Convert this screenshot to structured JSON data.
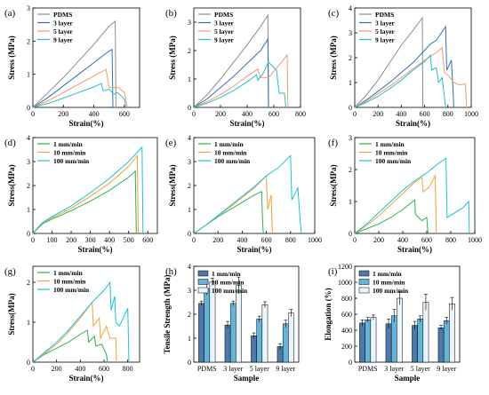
{
  "colors": {
    "PDMS": "#8c8c8c",
    "3 layer": "#2f6fb5",
    "5 layer": "#f39c6b",
    "9 layer": "#20c1c9",
    "1 mm/min": "#2bb34a",
    "10 mm/min": "#f5a03a",
    "100 mm/min": "#18c3d8",
    "bar1": "#4f79a8",
    "bar10": "#62b5d8",
    "bar100": "#eaf5fb"
  },
  "chart_data": [
    {
      "panel": "(a)",
      "type": "line",
      "xlabel": "Strain(%)",
      "ylabel": "Stress (MPa)",
      "xlim": [
        0,
        700
      ],
      "ylim": [
        0,
        3
      ],
      "xticks": [
        0,
        200,
        400,
        600
      ],
      "yticks": [
        0,
        1,
        2,
        3
      ],
      "legend": "top-left",
      "series": [
        {
          "name": "PDMS",
          "x": [
            0,
            100,
            200,
            300,
            400,
            500,
            540,
            545
          ],
          "y": [
            0,
            0.45,
            0.9,
            1.4,
            1.9,
            2.45,
            2.6,
            0
          ]
        },
        {
          "name": "3 layer",
          "x": [
            0,
            100,
            200,
            300,
            400,
            500,
            520,
            525
          ],
          "y": [
            0,
            0.3,
            0.65,
            1.0,
            1.35,
            1.7,
            1.75,
            0
          ]
        },
        {
          "name": "5 layer",
          "x": [
            0,
            100,
            200,
            300,
            400,
            480,
            500,
            560,
            600,
            620
          ],
          "y": [
            0,
            0.2,
            0.45,
            0.7,
            0.95,
            1.15,
            0.6,
            0.6,
            0.45,
            0
          ]
        },
        {
          "name": "9 layer",
          "x": [
            0,
            100,
            200,
            300,
            400,
            450,
            460,
            500,
            530,
            555,
            600,
            610
          ],
          "y": [
            0,
            0.12,
            0.28,
            0.45,
            0.62,
            0.72,
            0.5,
            0.55,
            0.4,
            0.45,
            0.25,
            0
          ]
        }
      ]
    },
    {
      "panel": "(b)",
      "type": "line",
      "xlabel": "Strain(%)",
      "ylabel": "Stress (MPa)",
      "xlim": [
        0,
        800
      ],
      "ylim": [
        0,
        3.5
      ],
      "xticks": [
        0,
        200,
        400,
        600,
        800
      ],
      "yticks": [
        0,
        1,
        2,
        3
      ],
      "legend": "top-left",
      "series": [
        {
          "name": "PDMS",
          "x": [
            0,
            100,
            200,
            300,
            400,
            500,
            555,
            560
          ],
          "y": [
            0,
            0.45,
            1.0,
            1.6,
            2.2,
            2.85,
            3.25,
            0
          ]
        },
        {
          "name": "3 layer",
          "x": [
            0,
            100,
            200,
            300,
            400,
            500,
            555,
            560
          ],
          "y": [
            0,
            0.3,
            0.7,
            1.1,
            1.55,
            2.0,
            2.4,
            0
          ]
        },
        {
          "name": "5 layer",
          "x": [
            0,
            100,
            200,
            300,
            400,
            480,
            500,
            560,
            650,
            700,
            705
          ],
          "y": [
            0,
            0.2,
            0.45,
            0.75,
            1.1,
            1.35,
            1.05,
            1.05,
            1.55,
            1.85,
            0
          ]
        },
        {
          "name": "9 layer",
          "x": [
            0,
            100,
            200,
            300,
            400,
            470,
            480,
            520,
            560,
            620,
            640,
            680,
            690
          ],
          "y": [
            0,
            0.15,
            0.35,
            0.6,
            0.9,
            1.15,
            0.95,
            1.2,
            1.6,
            1.3,
            0.5,
            0.5,
            0
          ]
        }
      ]
    },
    {
      "panel": "(c)",
      "type": "line",
      "xlabel": "Strain(%)",
      "ylabel": "Stress (MPa)",
      "xlim": [
        0,
        1000
      ],
      "ylim": [
        0,
        4
      ],
      "xticks": [
        0,
        200,
        400,
        600,
        800,
        1000
      ],
      "yticks": [
        0,
        1,
        2,
        3,
        4
      ],
      "legend": "top-left",
      "series": [
        {
          "name": "PDMS",
          "x": [
            0,
            100,
            200,
            300,
            400,
            500,
            580,
            585
          ],
          "y": [
            0,
            0.5,
            1.1,
            1.8,
            2.5,
            3.1,
            3.6,
            0
          ]
        },
        {
          "name": "3 layer",
          "x": [
            0,
            100,
            200,
            300,
            400,
            500,
            600,
            650,
            700,
            780,
            790,
            830,
            845,
            850
          ],
          "y": [
            0,
            0.3,
            0.65,
            1.0,
            1.4,
            1.8,
            2.3,
            2.55,
            2.7,
            3.25,
            1.5,
            1.9,
            0.6,
            0
          ]
        },
        {
          "name": "5 layer",
          "x": [
            0,
            100,
            200,
            300,
            400,
            500,
            600,
            700,
            750,
            770,
            800,
            850,
            900,
            950,
            960
          ],
          "y": [
            0,
            0.25,
            0.55,
            0.85,
            1.2,
            1.55,
            1.9,
            2.2,
            2.4,
            1.4,
            1.3,
            1.0,
            0.9,
            0.95,
            0
          ]
        },
        {
          "name": "9 layer",
          "x": [
            0,
            100,
            200,
            300,
            400,
            500,
            600,
            650,
            660,
            700,
            720,
            750,
            780
          ],
          "y": [
            0,
            0.2,
            0.45,
            0.75,
            1.1,
            1.5,
            1.85,
            2.1,
            1.5,
            1.6,
            1.0,
            1.2,
            0
          ]
        }
      ]
    },
    {
      "panel": "(d)",
      "type": "line",
      "xlabel": "Strain(%)",
      "ylabel": "Stress(MPa)",
      "xlim": [
        0,
        650
      ],
      "ylim": [
        0,
        4
      ],
      "xticks": [
        0,
        100,
        200,
        300,
        400,
        500,
        600
      ],
      "yticks": [
        0,
        1,
        2,
        3,
        4
      ],
      "legend": "top-left",
      "series": [
        {
          "name": "1 mm/min",
          "x": [
            0,
            50,
            100,
            200,
            300,
            400,
            500,
            535,
            540
          ],
          "y": [
            0,
            0.4,
            0.6,
            0.95,
            1.35,
            1.8,
            2.35,
            2.6,
            0
          ]
        },
        {
          "name": "10 mm/min",
          "x": [
            0,
            50,
            100,
            200,
            300,
            400,
            500,
            545,
            550
          ],
          "y": [
            0,
            0.45,
            0.65,
            1.05,
            1.55,
            2.1,
            2.8,
            3.25,
            0
          ]
        },
        {
          "name": "100 mm/min",
          "x": [
            0,
            50,
            100,
            200,
            300,
            400,
            500,
            570,
            575
          ],
          "y": [
            0,
            0.45,
            0.7,
            1.15,
            1.7,
            2.3,
            3.0,
            3.6,
            0
          ]
        }
      ]
    },
    {
      "panel": "(e)",
      "type": "line",
      "xlabel": "Strain(%)",
      "ylabel": "Stress(MPa)",
      "xlim": [
        0,
        1000
      ],
      "ylim": [
        0,
        4
      ],
      "xticks": [
        0,
        200,
        400,
        600,
        800,
        1000
      ],
      "yticks": [
        0,
        1,
        2,
        3,
        4
      ],
      "legend": "top-left",
      "series": [
        {
          "name": "1 mm/min",
          "x": [
            0,
            100,
            200,
            300,
            400,
            500,
            560,
            570,
            575
          ],
          "y": [
            0,
            0.35,
            0.7,
            1.0,
            1.3,
            1.6,
            1.75,
            0.4,
            0
          ]
        },
        {
          "name": "10 mm/min",
          "x": [
            0,
            100,
            200,
            300,
            400,
            500,
            600,
            610,
            640,
            650
          ],
          "y": [
            0,
            0.35,
            0.75,
            1.1,
            1.5,
            1.9,
            2.4,
            1.0,
            1.6,
            0
          ]
        },
        {
          "name": "100 mm/min",
          "x": [
            0,
            100,
            200,
            300,
            400,
            500,
            600,
            700,
            800,
            810,
            860,
            880,
            890
          ],
          "y": [
            0,
            0.35,
            0.75,
            1.15,
            1.55,
            1.95,
            2.4,
            2.75,
            3.25,
            1.4,
            1.9,
            0.5,
            0
          ]
        }
      ]
    },
    {
      "panel": "(f)",
      "type": "line",
      "xlabel": "Strain(%)",
      "ylabel": "Stress(MPa)",
      "xlim": [
        0,
        1000
      ],
      "ylim": [
        0,
        3
      ],
      "xticks": [
        0,
        200,
        400,
        600,
        800,
        1000
      ],
      "yticks": [
        0,
        1,
        2,
        3
      ],
      "legend": "top-left",
      "series": [
        {
          "name": "1 mm/min",
          "x": [
            0,
            100,
            200,
            300,
            400,
            500,
            505,
            560,
            600,
            610
          ],
          "y": [
            0,
            0.15,
            0.3,
            0.5,
            0.75,
            1.05,
            0.6,
            0.4,
            0.5,
            0
          ]
        },
        {
          "name": "10 mm/min",
          "x": [
            0,
            100,
            200,
            300,
            400,
            500,
            560,
            570,
            620,
            670,
            680
          ],
          "y": [
            0,
            0.25,
            0.55,
            0.9,
            1.25,
            1.6,
            1.75,
            1.3,
            1.45,
            1.8,
            0
          ]
        },
        {
          "name": "100 mm/min",
          "x": [
            0,
            100,
            200,
            300,
            400,
            500,
            600,
            700,
            760,
            770,
            900,
            950,
            955
          ],
          "y": [
            0,
            0.3,
            0.65,
            1.0,
            1.35,
            1.65,
            1.9,
            2.2,
            2.35,
            0.5,
            0.8,
            1.0,
            0
          ]
        }
      ]
    },
    {
      "panel": "(g)",
      "type": "line",
      "xlabel": "Strain(%)",
      "ylabel": "Stress(MPa)",
      "xlim": [
        0,
        900
      ],
      "ylim": [
        0,
        2.4
      ],
      "xticks": [
        0,
        200,
        400,
        600,
        800
      ],
      "yticks": [
        0,
        1,
        2
      ],
      "legend": "top-left",
      "series": [
        {
          "name": "1 mm/min",
          "x": [
            0,
            100,
            200,
            300,
            400,
            460,
            470,
            520,
            530,
            580,
            620,
            630
          ],
          "y": [
            0,
            0.2,
            0.35,
            0.5,
            0.7,
            0.8,
            0.5,
            0.65,
            0.4,
            0.45,
            0.2,
            0
          ]
        },
        {
          "name": "10 mm/min",
          "x": [
            0,
            100,
            200,
            300,
            400,
            500,
            510,
            560,
            570,
            620,
            650,
            700,
            705
          ],
          "y": [
            0,
            0.22,
            0.45,
            0.75,
            1.1,
            1.5,
            0.9,
            1.1,
            0.6,
            0.9,
            0.6,
            0.6,
            0
          ]
        },
        {
          "name": "100 mm/min",
          "x": [
            0,
            100,
            200,
            300,
            400,
            500,
            600,
            650,
            660,
            690,
            700,
            730,
            800,
            810
          ],
          "y": [
            0,
            0.25,
            0.5,
            0.8,
            1.15,
            1.5,
            1.8,
            2.0,
            1.3,
            1.65,
            1.0,
            0.9,
            1.35,
            0
          ]
        }
      ]
    },
    {
      "panel": "(h)",
      "type": "bar",
      "xlabel": "Sample",
      "ylabel": "Tensile Strength (MPa)",
      "categories": [
        "PDMS",
        "3 layer",
        "5 layer",
        "9 layer"
      ],
      "ylim": [
        0,
        4
      ],
      "yticks": [
        0,
        1,
        2,
        3,
        4
      ],
      "legend": "top-left",
      "series": [
        {
          "name": "1 mm/min",
          "values": [
            2.45,
            1.55,
            1.1,
            0.65
          ],
          "errors": [
            0.1,
            0.15,
            0.12,
            0.12
          ]
        },
        {
          "name": "10 mm/min",
          "values": [
            3.05,
            2.45,
            1.8,
            1.6
          ],
          "errors": [
            0.25,
            0.1,
            0.12,
            0.15
          ]
        },
        {
          "name": "100 mm/min",
          "values": [
            3.35,
            3.2,
            2.4,
            2.05
          ],
          "errors": [
            0.15,
            0.35,
            0.12,
            0.15
          ]
        }
      ]
    },
    {
      "panel": "(i)",
      "type": "bar",
      "xlabel": "Sample",
      "ylabel": "Elongation (%)",
      "categories": [
        "PDMS",
        "3 layer",
        "5 layer",
        "9 layer"
      ],
      "ylim": [
        0,
        1200
      ],
      "yticks": [
        0,
        200,
        400,
        600,
        800,
        1000,
        1200
      ],
      "legend": "top-left",
      "series": [
        {
          "name": "1 mm/min",
          "values": [
            490,
            480,
            460,
            430
          ],
          "errors": [
            40,
            60,
            50,
            30
          ]
        },
        {
          "name": "10 mm/min",
          "values": [
            530,
            580,
            540,
            520
          ],
          "errors": [
            30,
            80,
            40,
            40
          ]
        },
        {
          "name": "100 mm/min",
          "values": [
            560,
            800,
            750,
            730
          ],
          "errors": [
            30,
            80,
            100,
            80
          ]
        }
      ]
    }
  ]
}
